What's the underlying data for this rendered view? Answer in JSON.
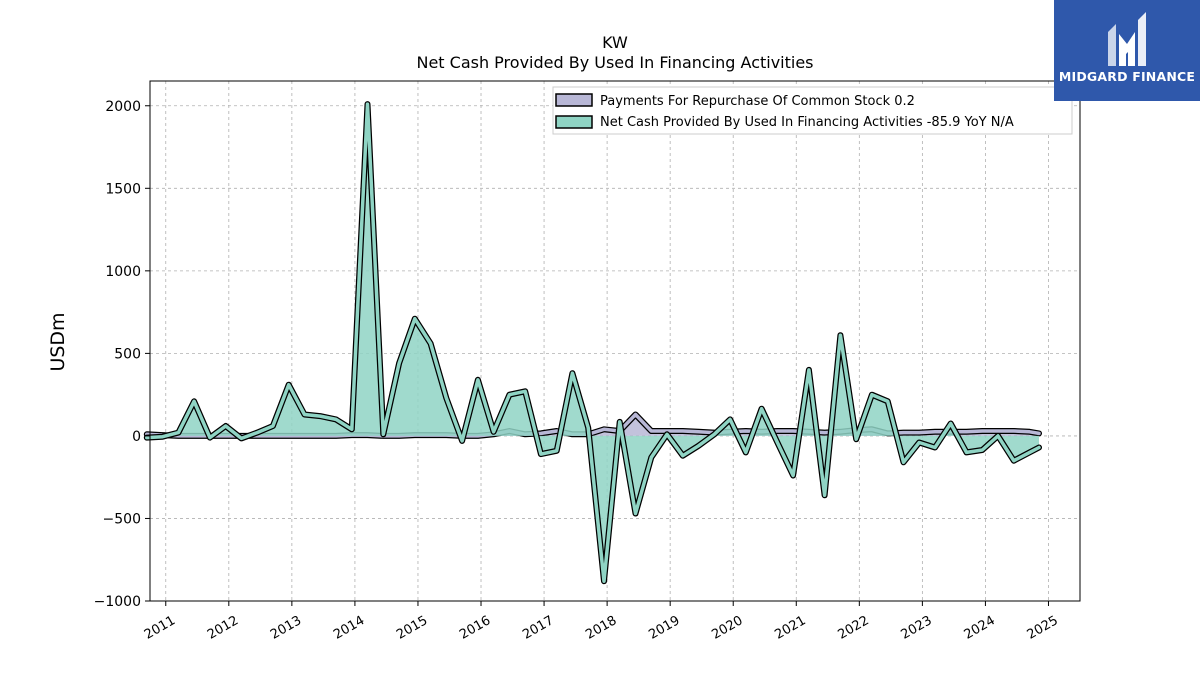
{
  "header": {
    "ticker": "KW",
    "metric": "Net Cash Provided By Used In Financing Activities"
  },
  "logo": {
    "text": "MIDGARD FINANCE",
    "icon": "midgard-m-logo-icon",
    "bg": "#2f58ab"
  },
  "chart_data": {
    "type": "area",
    "title": "KW",
    "subtitle": "Net Cash Provided By Used In Financing Activities",
    "ylabel": "USDm",
    "xlabel": "",
    "ylim": [
      -1000,
      2150
    ],
    "xlim": [
      2010.75,
      2025.5
    ],
    "yticks": [
      -1000,
      -500,
      0,
      500,
      1000,
      1500,
      2000
    ],
    "ytick_labels": [
      "−1000",
      "−500",
      "0",
      "500",
      "1000",
      "1500",
      "2000"
    ],
    "xticks": [
      2011,
      2012,
      2013,
      2014,
      2015,
      2016,
      2017,
      2018,
      2019,
      2020,
      2021,
      2022,
      2023,
      2024,
      2025
    ],
    "xtick_labels": [
      "2011",
      "2012",
      "2013",
      "2014",
      "2015",
      "2016",
      "2017",
      "2018",
      "2019",
      "2020",
      "2021",
      "2022",
      "2023",
      "2024",
      "2025"
    ],
    "grid": true,
    "legend_position": "top-right",
    "series": [
      {
        "name": "Payments For Repurchase Of Common Stock",
        "legend_label": "Payments For Repurchase Of Common Stock  0.2",
        "color": "#b8b7d6",
        "x": [
          2010.7,
          2010.95,
          2011.2,
          2011.45,
          2011.7,
          2011.95,
          2012.2,
          2012.45,
          2012.7,
          2012.95,
          2013.2,
          2013.45,
          2013.7,
          2013.95,
          2014.2,
          2014.45,
          2014.7,
          2014.95,
          2015.2,
          2015.45,
          2015.7,
          2015.95,
          2016.2,
          2016.45,
          2016.7,
          2016.95,
          2017.2,
          2017.45,
          2017.7,
          2017.95,
          2018.2,
          2018.45,
          2018.7,
          2018.95,
          2019.2,
          2019.45,
          2019.7,
          2019.95,
          2020.2,
          2020.45,
          2020.7,
          2020.95,
          2021.2,
          2021.45,
          2021.7,
          2021.95,
          2022.2,
          2022.45,
          2022.7,
          2022.95,
          2023.2,
          2023.45,
          2023.7,
          2023.95,
          2024.2,
          2024.45,
          2024.7,
          2024.85
        ],
        "values": [
          10,
          5,
          0,
          0,
          0,
          0,
          0,
          0,
          0,
          0,
          0,
          0,
          0,
          5,
          5,
          0,
          0,
          5,
          5,
          5,
          0,
          0,
          10,
          30,
          10,
          15,
          30,
          10,
          10,
          40,
          30,
          130,
          30,
          30,
          30,
          25,
          20,
          25,
          30,
          25,
          30,
          30,
          25,
          20,
          25,
          35,
          40,
          15,
          20,
          20,
          25,
          25,
          25,
          30,
          30,
          30,
          25,
          15
        ]
      },
      {
        "name": "Net Cash Provided By Used In Financing Activities",
        "legend_label": "Net Cash Provided By Used In Financing Activities  -85.9 YoY N/A",
        "color": "#8fd4c4",
        "x": [
          2010.7,
          2010.95,
          2011.2,
          2011.45,
          2011.7,
          2011.95,
          2012.2,
          2012.45,
          2012.7,
          2012.95,
          2013.2,
          2013.45,
          2013.7,
          2013.95,
          2014.2,
          2014.45,
          2014.7,
          2014.95,
          2015.2,
          2015.45,
          2015.7,
          2015.95,
          2016.2,
          2016.45,
          2016.7,
          2016.95,
          2017.2,
          2017.45,
          2017.7,
          2017.95,
          2018.2,
          2018.45,
          2018.7,
          2018.95,
          2019.2,
          2019.45,
          2019.7,
          2019.95,
          2020.2,
          2020.45,
          2020.7,
          2020.95,
          2021.2,
          2021.45,
          2021.7,
          2021.95,
          2022.2,
          2022.45,
          2022.7,
          2022.95,
          2023.2,
          2023.45,
          2023.7,
          2023.95,
          2024.2,
          2024.45,
          2024.7,
          2024.85
        ],
        "values": [
          -10,
          -5,
          20,
          210,
          -10,
          60,
          -15,
          20,
          60,
          310,
          130,
          120,
          100,
          40,
          2010,
          10,
          440,
          710,
          560,
          230,
          -30,
          340,
          25,
          250,
          270,
          -110,
          -90,
          380,
          50,
          -880,
          85,
          -470,
          -130,
          10,
          -120,
          -60,
          10,
          100,
          -100,
          165,
          -40,
          -240,
          400,
          -360,
          610,
          -20,
          250,
          210,
          -160,
          -40,
          -70,
          75,
          -100,
          -85,
          0,
          -150,
          -100,
          -70
        ]
      }
    ]
  }
}
